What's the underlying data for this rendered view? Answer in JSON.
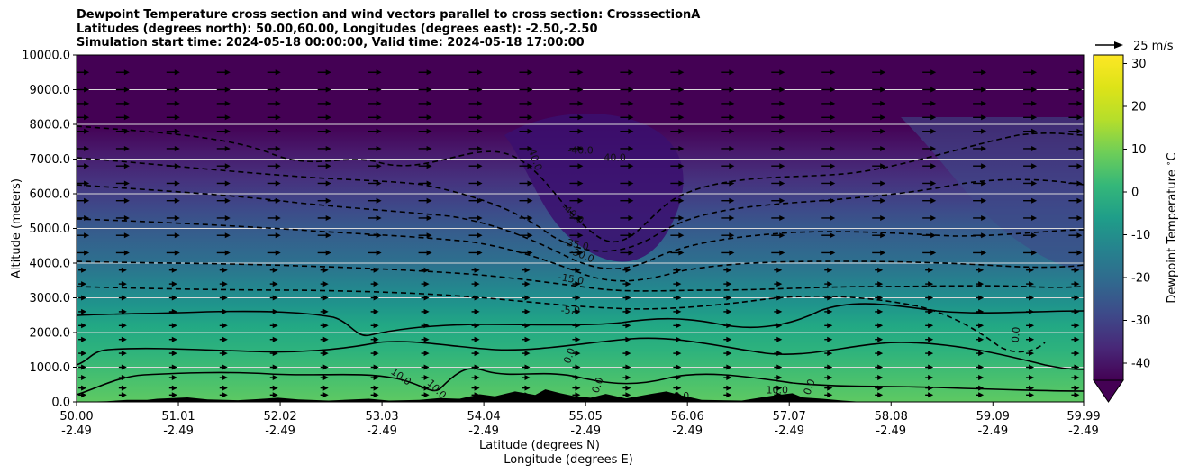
{
  "title_lines": [
    "Dewpoint Temperature cross section and wind vectors parallel to cross section: CrosssectionA",
    "Latitudes (degrees north): 50.00,60.00, Longitudes (degrees east): -2.50,-2.50",
    "Simulation start time: 2024-05-18 00:00:00, Valid time: 2024-05-18 17:00:00"
  ],
  "colorbar": {
    "label": "Dewpoint Temperature $^\\circ$C",
    "ticks": [
      30,
      20,
      10,
      0,
      -10,
      -20,
      -30,
      -40
    ],
    "range": [
      -44,
      32
    ],
    "extend": "min",
    "colormap": "viridis"
  },
  "quiver_key": {
    "label": "25 m/s"
  },
  "chart_data": {
    "type": "heatmap",
    "ylabel": "Altitude (meters)",
    "xlabel_lines": [
      "Latitude (degrees N)",
      "Longitude (degrees E)"
    ],
    "y_ticks": [
      "0.0",
      "1000.0",
      "2000.0",
      "3000.0",
      "4000.0",
      "5000.0",
      "6000.0",
      "7000.0",
      "8000.0",
      "9000.0",
      "10000.0"
    ],
    "y_tick_values": [
      0,
      1000,
      2000,
      3000,
      4000,
      5000,
      6000,
      7000,
      8000,
      9000,
      10000
    ],
    "ylim": [
      0,
      10000
    ],
    "x_tick_values": [
      50.0,
      51.01,
      52.02,
      53.03,
      54.04,
      55.05,
      56.06,
      57.07,
      58.08,
      59.09,
      59.99
    ],
    "x_tick_lat_labels": [
      "50.00",
      "51.01",
      "52.02",
      "53.03",
      "54.04",
      "55.05",
      "56.06",
      "57.07",
      "58.08",
      "59.09",
      "59.99"
    ],
    "x_tick_lon_labels": [
      "-2.49",
      "-2.49",
      "-2.49",
      "-2.49",
      "-2.49",
      "-2.49",
      "-2.49",
      "-2.49",
      "-2.49",
      "-2.49",
      "-2.49"
    ],
    "xlim": [
      50.0,
      59.99
    ],
    "grid_horizontal": true,
    "contour_labels": [
      {
        "text": "-40.0",
        "lat": 55.0,
        "alt": 7150,
        "rot": 0
      },
      {
        "text": "40.0",
        "lat": 55.34,
        "alt": 6950,
        "rot": 0
      },
      {
        "text": "40.0",
        "lat": 54.52,
        "alt": 6950,
        "rot": 70
      },
      {
        "text": "-40.0",
        "lat": 54.9,
        "alt": 5350,
        "rot": 40
      },
      {
        "text": "-35.0",
        "lat": 54.95,
        "alt": 4450,
        "rot": 12
      },
      {
        "text": "-30.0",
        "lat": 55.0,
        "alt": 4150,
        "rot": 22
      },
      {
        "text": "-15.0",
        "lat": 54.9,
        "alt": 3450,
        "rot": 10
      },
      {
        "text": "-5.0",
        "lat": 54.9,
        "alt": 2550,
        "rot": 0
      },
      {
        "text": "0.0",
        "lat": 54.92,
        "alt": 1300,
        "rot": -70
      },
      {
        "text": "0.0",
        "lat": 55.2,
        "alt": 450,
        "rot": -70
      },
      {
        "text": "10.0",
        "lat": 53.2,
        "alt": 650,
        "rot": 35
      },
      {
        "text": "10.0",
        "lat": 53.55,
        "alt": 300,
        "rot": 45
      },
      {
        "text": "10.0",
        "lat": 56.95,
        "alt": 250,
        "rot": 0
      },
      {
        "text": "0.0",
        "lat": 57.3,
        "alt": 400,
        "rot": -70
      },
      {
        "text": "0.0",
        "lat": 56.0,
        "alt": 80,
        "rot": 0
      },
      {
        "text": "0.0",
        "lat": 59.35,
        "alt": 1930,
        "rot": -85
      }
    ],
    "terrain": [
      [
        50.0,
        0
      ],
      [
        50.3,
        20
      ],
      [
        50.5,
        60
      ],
      [
        50.7,
        60
      ],
      [
        50.8,
        90
      ],
      [
        51.1,
        130
      ],
      [
        51.3,
        70
      ],
      [
        51.6,
        50
      ],
      [
        51.8,
        80
      ],
      [
        52.0,
        120
      ],
      [
        52.2,
        70
      ],
      [
        52.5,
        40
      ],
      [
        52.9,
        90
      ],
      [
        53.1,
        40
      ],
      [
        53.4,
        60
      ],
      [
        53.6,
        110
      ],
      [
        53.8,
        90
      ],
      [
        54.0,
        220
      ],
      [
        54.15,
        160
      ],
      [
        54.35,
        300
      ],
      [
        54.55,
        200
      ],
      [
        54.65,
        360
      ],
      [
        54.8,
        250
      ],
      [
        54.95,
        160
      ],
      [
        55.1,
        120
      ],
      [
        55.25,
        230
      ],
      [
        55.45,
        100
      ],
      [
        55.7,
        230
      ],
      [
        55.85,
        300
      ],
      [
        56.0,
        190
      ],
      [
        56.2,
        60
      ],
      [
        56.6,
        40
      ],
      [
        56.9,
        180
      ],
      [
        57.1,
        250
      ],
      [
        57.2,
        130
      ],
      [
        57.4,
        90
      ],
      [
        57.6,
        40
      ],
      [
        57.8,
        0
      ],
      [
        59.99,
        0
      ]
    ],
    "wind_levels_m": [
      200,
      400,
      700,
      1000,
      1400,
      1800,
      2200,
      2600,
      3000,
      3400,
      3800,
      4300,
      4800,
      5300,
      5800,
      6300,
      6800,
      7300,
      7800,
      8200,
      8600,
      9000,
      9500
    ],
    "wind_columns_lat": [
      50.05,
      50.45,
      50.95,
      51.45,
      51.95,
      52.45,
      52.95,
      53.45,
      53.95,
      54.45,
      54.95,
      55.45,
      55.95,
      56.45,
      56.95,
      57.45,
      57.95,
      58.45,
      58.95,
      59.45,
      59.9
    ]
  }
}
